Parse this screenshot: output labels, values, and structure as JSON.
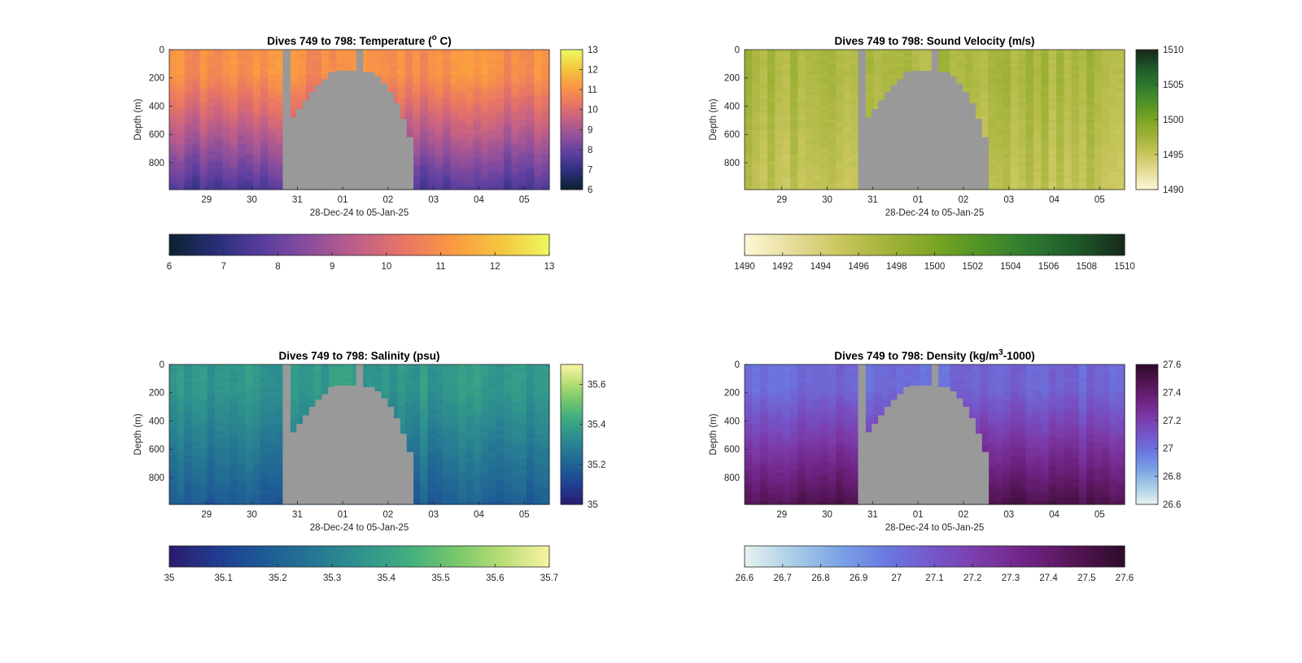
{
  "figure": {
    "background": "#ffffff",
    "nodata_color": "#999999"
  },
  "chart_data": [
    {
      "type": "heatmap",
      "title_main": "Dives 749 to 798: Temperature (",
      "title_sup": "o",
      "title_tail": " C)",
      "ylabel": "Depth (m)",
      "xlabel": "28-Dec-24 to 05-Jan-25",
      "x_ticks": [
        "29",
        "30",
        "31",
        "01",
        "02",
        "03",
        "04",
        "05"
      ],
      "y_ticks": [
        "0",
        "200",
        "400",
        "600",
        "800"
      ],
      "colorbar_ticks": [
        "6",
        "7",
        "8",
        "9",
        "10",
        "11",
        "12",
        "13"
      ],
      "colorbar_h_ticks": [
        "6",
        "7",
        "8",
        "9",
        "10",
        "11",
        "12",
        "13"
      ],
      "clim": [
        6,
        13
      ],
      "colormap": [
        "#0d2233",
        "#2a2f7a",
        "#5b3ea0",
        "#8e4f9c",
        "#c26087",
        "#ea7663",
        "#fa9a41",
        "#f4c63f",
        "#eef55e"
      ],
      "surface_value": 11.0,
      "deep_value": 7.4
    },
    {
      "type": "heatmap",
      "title_main": "Dives 749 to 798: Sound Velocity (m/s)",
      "title_sup": "",
      "title_tail": "",
      "ylabel": "Depth (m)",
      "xlabel": "28-Dec-24 to 05-Jan-25",
      "x_ticks": [
        "29",
        "30",
        "31",
        "01",
        "02",
        "03",
        "04",
        "05"
      ],
      "y_ticks": [
        "0",
        "200",
        "400",
        "600",
        "800"
      ],
      "colorbar_ticks": [
        "1510",
        "1505",
        "1500",
        "1495",
        "1490"
      ],
      "colorbar_h_ticks": [
        "1490",
        "1492",
        "1494",
        "1496",
        "1498",
        "1500",
        "1502",
        "1504",
        "1506",
        "1508",
        "1510"
      ],
      "clim": [
        1490,
        1510
      ],
      "colormap": [
        "#fdf7d4",
        "#e5dc98",
        "#c9c65e",
        "#a3b33a",
        "#7ca523",
        "#4f9226",
        "#2e7a30",
        "#1e5a2a",
        "#172b1c"
      ],
      "surface_value": 1497.0,
      "deep_value": 1495.5
    },
    {
      "type": "heatmap",
      "title_main": "Dives 749 to 798: Salinity (psu)",
      "title_sup": "",
      "title_tail": "",
      "ylabel": "Depth (m)",
      "xlabel": "28-Dec-24 to 05-Jan-25",
      "x_ticks": [
        "29",
        "30",
        "31",
        "01",
        "02",
        "03",
        "04",
        "05"
      ],
      "y_ticks": [
        "0",
        "200",
        "400",
        "600",
        "800"
      ],
      "colorbar_ticks": [
        "35.6",
        "35.4",
        "35.2",
        "35"
      ],
      "colorbar_h_ticks": [
        "35",
        "35.1",
        "35.2",
        "35.3",
        "35.4",
        "35.5",
        "35.6",
        "35.7"
      ],
      "clim": [
        35.0,
        35.7
      ],
      "colormap": [
        "#2a1d6e",
        "#213c91",
        "#1e5b96",
        "#257693",
        "#2f928e",
        "#40ad80",
        "#74c66b",
        "#b6dd75",
        "#f6f2a2"
      ],
      "surface_value": 35.37,
      "deep_value": 35.18
    },
    {
      "type": "heatmap",
      "title_main": "Dives 749 to 798: Density (kg/m",
      "title_sup": "3",
      "title_tail": "-1000)",
      "ylabel": "Depth (m)",
      "xlabel": "28-Dec-24 to 05-Jan-25",
      "x_ticks": [
        "29",
        "30",
        "31",
        "01",
        "02",
        "03",
        "04",
        "05"
      ],
      "y_ticks": [
        "0",
        "200",
        "400",
        "600",
        "800"
      ],
      "colorbar_ticks": [
        "27.6",
        "27.4",
        "27.2",
        "27",
        "26.8",
        "26.6"
      ],
      "colorbar_h_ticks": [
        "26.6",
        "26.7",
        "26.8",
        "26.9",
        "27",
        "27.1",
        "27.2",
        "27.3",
        "27.4",
        "27.5",
        "27.6"
      ],
      "clim": [
        26.6,
        27.6
      ],
      "colormap": [
        "#e6f1f1",
        "#a8cde6",
        "#7ba2e6",
        "#6a78e0",
        "#7556c9",
        "#7c3aa8",
        "#6e2382",
        "#541555",
        "#2f0b2b"
      ],
      "surface_value": 27.03,
      "deep_value": 27.5
    }
  ]
}
